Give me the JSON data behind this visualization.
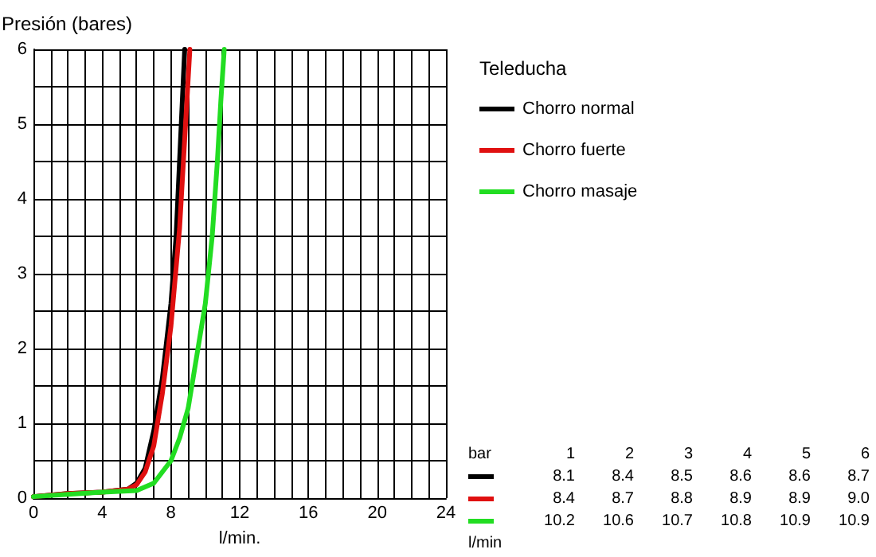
{
  "chart_data": {
    "type": "line",
    "xlabel": "l/min.",
    "ylabel": "Presión (bares)",
    "legend_title": "Teleducha",
    "xlim": [
      0,
      24
    ],
    "ylim": [
      0,
      6
    ],
    "xticks": [
      0,
      {
        "value": 1,
        "label": null
      },
      {
        "value": 2,
        "label": null
      },
      {
        "value": 3,
        "label": null
      },
      4,
      {
        "value": 5,
        "label": null
      },
      {
        "value": 6,
        "label": null
      },
      {
        "value": 7,
        "label": null
      },
      8,
      {
        "value": 9,
        "label": null
      },
      {
        "value": 10,
        "label": null
      },
      {
        "value": 11,
        "label": null
      },
      12,
      {
        "value": 13,
        "label": null
      },
      {
        "value": 14,
        "label": null
      },
      {
        "value": 15,
        "label": null
      },
      16,
      {
        "value": 17,
        "label": null
      },
      {
        "value": 18,
        "label": null
      },
      {
        "value": 19,
        "label": null
      },
      20,
      {
        "value": 21,
        "label": null
      },
      {
        "value": 22,
        "label": null
      },
      {
        "value": 23,
        "label": null
      },
      24
    ],
    "yticks": [
      0,
      {
        "value": 0.5,
        "label": null
      },
      1,
      {
        "value": 1.5,
        "label": null
      },
      2,
      {
        "value": 2.5,
        "label": null
      },
      3,
      {
        "value": 3.5,
        "label": null
      },
      4,
      {
        "value": 4.5,
        "label": null
      },
      5,
      {
        "value": 5.5,
        "label": null
      },
      6
    ],
    "grid": true,
    "legend": "top right",
    "marker": "none",
    "line_style": "solid",
    "series": [
      {
        "name": "Chorro normal",
        "color": "#000000",
        "x": [
          0,
          2,
          4,
          5.5,
          6,
          6.5,
          7,
          7.5,
          8,
          8.3,
          8.5,
          8.7,
          8.8
        ],
        "values": [
          0.02,
          0.06,
          0.08,
          0.12,
          0.2,
          0.4,
          0.9,
          1.6,
          2.6,
          3.5,
          4.5,
          5.5,
          6
        ]
      },
      {
        "name": "Chorro fuerte",
        "color": "#e01010",
        "x": [
          0,
          2,
          4,
          5.5,
          6,
          6.5,
          7,
          7.5,
          8,
          8.5,
          8.8,
          9.1
        ],
        "values": [
          0.02,
          0.06,
          0.08,
          0.12,
          0.18,
          0.35,
          0.7,
          1.4,
          2.3,
          3.6,
          4.8,
          6
        ]
      },
      {
        "name": "Chorro masaje",
        "color": "#22dd22",
        "x": [
          0,
          2,
          4,
          6,
          7,
          8,
          8.5,
          9,
          9.5,
          10,
          10.4,
          10.7,
          10.9,
          11.1
        ],
        "values": [
          0.02,
          0.05,
          0.08,
          0.1,
          0.2,
          0.5,
          0.8,
          1.2,
          1.9,
          2.6,
          3.5,
          4.5,
          5.3,
          6
        ]
      }
    ],
    "annotations": [
      "bar\t1\t2\t3\t4\t5\t6",
      "\t8.1\t8.4\t8.5\t8.6\t8.6\t8.7",
      "\t8.4\t8.7\t8.8\t8.9\t8.9\t9.0",
      "\t10.2\t10.6\t10.7\t10.8\t10.9\t10.9",
      "l/min"
    ]
  }
}
